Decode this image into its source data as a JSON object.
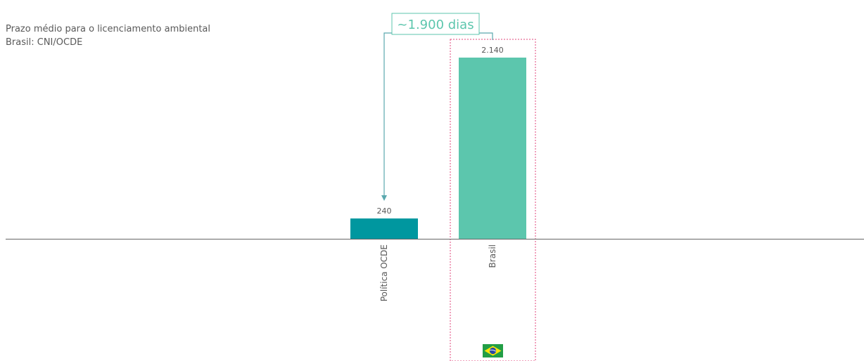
{
  "chart_data": {
    "type": "bar",
    "title": "Prazo médio para o licenciamento ambiental",
    "subtitle": "Brasil: CNI/OCDE",
    "categories": [
      "Política OCDE",
      "Brasil"
    ],
    "values": [
      240,
      2140
    ],
    "value_labels": [
      "240",
      "2.140"
    ],
    "ylim": [
      0,
      2140
    ],
    "grid": false,
    "legend": "none",
    "colors": {
      "Política OCDE": "#00979f",
      "Brasil": "#5cc6ad",
      "axis": "#666666",
      "callout_border": "#5cc6ad",
      "callout_text": "#5cc6ad",
      "arrow": "#5aa8ae",
      "highlight_box": "#e0457b"
    },
    "annotations": [
      {
        "text": "~1.900 dias",
        "from": "Brasil",
        "to": "Política OCDE",
        "type": "difference-arrow"
      }
    ],
    "highlight": "Brasil",
    "flag_icon": "brazil-flag-icon"
  }
}
